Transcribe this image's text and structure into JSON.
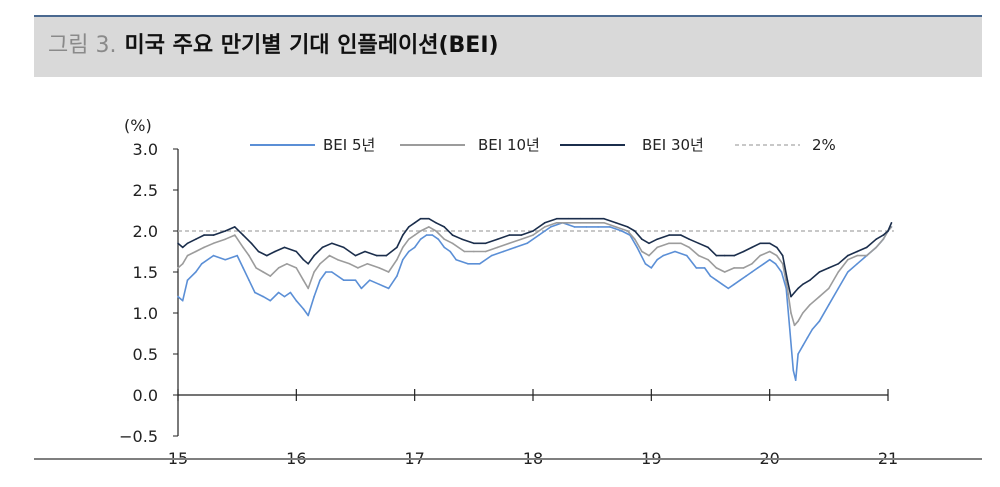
{
  "figure": {
    "label": "그림 3.",
    "title": "미국 주요 만기별 기대 인플레이션(BEI)"
  },
  "chart_data": {
    "type": "line",
    "ylabel": "(%)",
    "ylim": [
      -0.5,
      3.0
    ],
    "yticks": [
      3.0,
      2.5,
      2.0,
      1.5,
      1.0,
      0.5,
      0.0,
      -0.5
    ],
    "ytick_labels": [
      "3.0",
      "2.5",
      "2.0",
      "1.5",
      "1.0",
      "0.5",
      "0.0",
      "−0.5"
    ],
    "xlim": [
      2015.0,
      2021.05
    ],
    "xticks": [
      2015,
      2016,
      2017,
      2018,
      2019,
      2020,
      2021
    ],
    "xtick_labels": [
      "15",
      "16",
      "17",
      "18",
      "19",
      "20",
      "21"
    ],
    "grid": false,
    "legend_position": "top",
    "series": [
      {
        "name": "BEI 5년",
        "color": "#5b8fd6",
        "dashed": false,
        "points": [
          [
            2015.0,
            1.2
          ],
          [
            2015.04,
            1.15
          ],
          [
            2015.08,
            1.4
          ],
          [
            2015.15,
            1.5
          ],
          [
            2015.2,
            1.6
          ],
          [
            2015.3,
            1.7
          ],
          [
            2015.4,
            1.65
          ],
          [
            2015.5,
            1.7
          ],
          [
            2015.55,
            1.55
          ],
          [
            2015.6,
            1.4
          ],
          [
            2015.65,
            1.25
          ],
          [
            2015.72,
            1.2
          ],
          [
            2015.78,
            1.15
          ],
          [
            2015.85,
            1.25
          ],
          [
            2015.9,
            1.2
          ],
          [
            2015.95,
            1.25
          ],
          [
            2016.0,
            1.15
          ],
          [
            2016.06,
            1.05
          ],
          [
            2016.1,
            0.97
          ],
          [
            2016.15,
            1.2
          ],
          [
            2016.2,
            1.4
          ],
          [
            2016.25,
            1.5
          ],
          [
            2016.3,
            1.5
          ],
          [
            2016.4,
            1.4
          ],
          [
            2016.5,
            1.4
          ],
          [
            2016.55,
            1.3
          ],
          [
            2016.62,
            1.4
          ],
          [
            2016.7,
            1.35
          ],
          [
            2016.78,
            1.3
          ],
          [
            2016.85,
            1.45
          ],
          [
            2016.9,
            1.65
          ],
          [
            2016.95,
            1.75
          ],
          [
            2017.0,
            1.8
          ],
          [
            2017.05,
            1.9
          ],
          [
            2017.1,
            1.95
          ],
          [
            2017.15,
            1.95
          ],
          [
            2017.2,
            1.9
          ],
          [
            2017.25,
            1.8
          ],
          [
            2017.3,
            1.75
          ],
          [
            2017.35,
            1.65
          ],
          [
            2017.45,
            1.6
          ],
          [
            2017.55,
            1.6
          ],
          [
            2017.65,
            1.7
          ],
          [
            2017.75,
            1.75
          ],
          [
            2017.85,
            1.8
          ],
          [
            2017.95,
            1.85
          ],
          [
            2018.05,
            1.95
          ],
          [
            2018.15,
            2.05
          ],
          [
            2018.25,
            2.1
          ],
          [
            2018.35,
            2.05
          ],
          [
            2018.45,
            2.05
          ],
          [
            2018.55,
            2.05
          ],
          [
            2018.65,
            2.05
          ],
          [
            2018.75,
            2.0
          ],
          [
            2018.82,
            1.95
          ],
          [
            2018.88,
            1.8
          ],
          [
            2018.95,
            1.6
          ],
          [
            2019.0,
            1.55
          ],
          [
            2019.05,
            1.65
          ],
          [
            2019.1,
            1.7
          ],
          [
            2019.2,
            1.75
          ],
          [
            2019.3,
            1.7
          ],
          [
            2019.38,
            1.55
          ],
          [
            2019.45,
            1.55
          ],
          [
            2019.5,
            1.45
          ],
          [
            2019.55,
            1.4
          ],
          [
            2019.6,
            1.35
          ],
          [
            2019.65,
            1.3
          ],
          [
            2019.7,
            1.35
          ],
          [
            2019.75,
            1.4
          ],
          [
            2019.8,
            1.45
          ],
          [
            2019.85,
            1.5
          ],
          [
            2019.9,
            1.55
          ],
          [
            2019.95,
            1.6
          ],
          [
            2020.0,
            1.65
          ],
          [
            2020.05,
            1.6
          ],
          [
            2020.1,
            1.5
          ],
          [
            2020.14,
            1.3
          ],
          [
            2020.17,
            0.8
          ],
          [
            2020.2,
            0.3
          ],
          [
            2020.22,
            0.18
          ],
          [
            2020.24,
            0.5
          ],
          [
            2020.28,
            0.6
          ],
          [
            2020.32,
            0.7
          ],
          [
            2020.36,
            0.8
          ],
          [
            2020.42,
            0.9
          ],
          [
            2020.5,
            1.1
          ],
          [
            2020.58,
            1.3
          ],
          [
            2020.66,
            1.5
          ],
          [
            2020.74,
            1.6
          ],
          [
            2020.82,
            1.7
          ],
          [
            2020.9,
            1.8
          ],
          [
            2020.96,
            1.9
          ],
          [
            2021.0,
            2.0
          ],
          [
            2021.03,
            2.05
          ]
        ]
      },
      {
        "name": "BEI 10년",
        "color": "#9c9c9c",
        "dashed": false,
        "points": [
          [
            2015.0,
            1.55
          ],
          [
            2015.04,
            1.6
          ],
          [
            2015.08,
            1.7
          ],
          [
            2015.15,
            1.75
          ],
          [
            2015.22,
            1.8
          ],
          [
            2015.3,
            1.85
          ],
          [
            2015.4,
            1.9
          ],
          [
            2015.48,
            1.95
          ],
          [
            2015.55,
            1.8
          ],
          [
            2015.6,
            1.7
          ],
          [
            2015.66,
            1.55
          ],
          [
            2015.72,
            1.5
          ],
          [
            2015.78,
            1.45
          ],
          [
            2015.85,
            1.55
          ],
          [
            2015.92,
            1.6
          ],
          [
            2016.0,
            1.55
          ],
          [
            2016.06,
            1.4
          ],
          [
            2016.1,
            1.3
          ],
          [
            2016.15,
            1.5
          ],
          [
            2016.2,
            1.6
          ],
          [
            2016.28,
            1.7
          ],
          [
            2016.35,
            1.65
          ],
          [
            2016.45,
            1.6
          ],
          [
            2016.52,
            1.55
          ],
          [
            2016.6,
            1.6
          ],
          [
            2016.7,
            1.55
          ],
          [
            2016.78,
            1.5
          ],
          [
            2016.85,
            1.65
          ],
          [
            2016.9,
            1.8
          ],
          [
            2016.95,
            1.9
          ],
          [
            2017.0,
            1.95
          ],
          [
            2017.05,
            2.0
          ],
          [
            2017.12,
            2.05
          ],
          [
            2017.18,
            2.0
          ],
          [
            2017.25,
            1.9
          ],
          [
            2017.32,
            1.85
          ],
          [
            2017.42,
            1.75
          ],
          [
            2017.5,
            1.75
          ],
          [
            2017.6,
            1.75
          ],
          [
            2017.7,
            1.8
          ],
          [
            2017.8,
            1.85
          ],
          [
            2017.9,
            1.9
          ],
          [
            2018.0,
            1.95
          ],
          [
            2018.1,
            2.05
          ],
          [
            2018.2,
            2.1
          ],
          [
            2018.3,
            2.1
          ],
          [
            2018.4,
            2.1
          ],
          [
            2018.5,
            2.1
          ],
          [
            2018.6,
            2.1
          ],
          [
            2018.7,
            2.05
          ],
          [
            2018.8,
            2.0
          ],
          [
            2018.86,
            1.9
          ],
          [
            2018.92,
            1.75
          ],
          [
            2018.98,
            1.7
          ],
          [
            2019.05,
            1.8
          ],
          [
            2019.15,
            1.85
          ],
          [
            2019.25,
            1.85
          ],
          [
            2019.32,
            1.8
          ],
          [
            2019.4,
            1.7
          ],
          [
            2019.48,
            1.65
          ],
          [
            2019.55,
            1.55
          ],
          [
            2019.62,
            1.5
          ],
          [
            2019.7,
            1.55
          ],
          [
            2019.78,
            1.55
          ],
          [
            2019.85,
            1.6
          ],
          [
            2019.92,
            1.7
          ],
          [
            2020.0,
            1.75
          ],
          [
            2020.06,
            1.7
          ],
          [
            2020.11,
            1.6
          ],
          [
            2020.15,
            1.3
          ],
          [
            2020.18,
            1.0
          ],
          [
            2020.21,
            0.85
          ],
          [
            2020.24,
            0.9
          ],
          [
            2020.28,
            1.0
          ],
          [
            2020.34,
            1.1
          ],
          [
            2020.42,
            1.2
          ],
          [
            2020.5,
            1.3
          ],
          [
            2020.58,
            1.5
          ],
          [
            2020.66,
            1.65
          ],
          [
            2020.74,
            1.7
          ],
          [
            2020.82,
            1.7
          ],
          [
            2020.9,
            1.8
          ],
          [
            2020.96,
            1.9
          ],
          [
            2021.0,
            2.0
          ],
          [
            2021.03,
            2.05
          ]
        ]
      },
      {
        "name": "BEI 30년",
        "color": "#1b2e4c",
        "dashed": false,
        "points": [
          [
            2015.0,
            1.85
          ],
          [
            2015.04,
            1.8
          ],
          [
            2015.08,
            1.85
          ],
          [
            2015.15,
            1.9
          ],
          [
            2015.22,
            1.95
          ],
          [
            2015.3,
            1.95
          ],
          [
            2015.4,
            2.0
          ],
          [
            2015.48,
            2.05
          ],
          [
            2015.55,
            1.95
          ],
          [
            2015.62,
            1.85
          ],
          [
            2015.68,
            1.75
          ],
          [
            2015.75,
            1.7
          ],
          [
            2015.82,
            1.75
          ],
          [
            2015.9,
            1.8
          ],
          [
            2016.0,
            1.75
          ],
          [
            2016.06,
            1.65
          ],
          [
            2016.1,
            1.6
          ],
          [
            2016.15,
            1.7
          ],
          [
            2016.22,
            1.8
          ],
          [
            2016.3,
            1.85
          ],
          [
            2016.4,
            1.8
          ],
          [
            2016.5,
            1.7
          ],
          [
            2016.58,
            1.75
          ],
          [
            2016.68,
            1.7
          ],
          [
            2016.76,
            1.7
          ],
          [
            2016.85,
            1.8
          ],
          [
            2016.9,
            1.95
          ],
          [
            2016.95,
            2.05
          ],
          [
            2017.0,
            2.1
          ],
          [
            2017.05,
            2.15
          ],
          [
            2017.12,
            2.15
          ],
          [
            2017.18,
            2.1
          ],
          [
            2017.25,
            2.05
          ],
          [
            2017.32,
            1.95
          ],
          [
            2017.4,
            1.9
          ],
          [
            2017.5,
            1.85
          ],
          [
            2017.6,
            1.85
          ],
          [
            2017.7,
            1.9
          ],
          [
            2017.8,
            1.95
          ],
          [
            2017.9,
            1.95
          ],
          [
            2018.0,
            2.0
          ],
          [
            2018.1,
            2.1
          ],
          [
            2018.2,
            2.15
          ],
          [
            2018.3,
            2.15
          ],
          [
            2018.4,
            2.15
          ],
          [
            2018.5,
            2.15
          ],
          [
            2018.6,
            2.15
          ],
          [
            2018.7,
            2.1
          ],
          [
            2018.8,
            2.05
          ],
          [
            2018.86,
            2.0
          ],
          [
            2018.92,
            1.9
          ],
          [
            2018.98,
            1.85
          ],
          [
            2019.05,
            1.9
          ],
          [
            2019.15,
            1.95
          ],
          [
            2019.25,
            1.95
          ],
          [
            2019.32,
            1.9
          ],
          [
            2019.4,
            1.85
          ],
          [
            2019.48,
            1.8
          ],
          [
            2019.55,
            1.7
          ],
          [
            2019.62,
            1.7
          ],
          [
            2019.7,
            1.7
          ],
          [
            2019.78,
            1.75
          ],
          [
            2019.85,
            1.8
          ],
          [
            2019.92,
            1.85
          ],
          [
            2020.0,
            1.85
          ],
          [
            2020.06,
            1.8
          ],
          [
            2020.11,
            1.7
          ],
          [
            2020.15,
            1.4
          ],
          [
            2020.18,
            1.2
          ],
          [
            2020.21,
            1.25
          ],
          [
            2020.24,
            1.3
          ],
          [
            2020.28,
            1.35
          ],
          [
            2020.34,
            1.4
          ],
          [
            2020.42,
            1.5
          ],
          [
            2020.5,
            1.55
          ],
          [
            2020.58,
            1.6
          ],
          [
            2020.66,
            1.7
          ],
          [
            2020.74,
            1.75
          ],
          [
            2020.82,
            1.8
          ],
          [
            2020.9,
            1.9
          ],
          [
            2020.96,
            1.95
          ],
          [
            2021.0,
            2.0
          ],
          [
            2021.03,
            2.1
          ]
        ]
      },
      {
        "name": "2%",
        "color": "#b5b5b5",
        "dashed": true,
        "points": [
          [
            2015.0,
            2.0
          ],
          [
            2021.05,
            2.0
          ]
        ]
      }
    ]
  }
}
